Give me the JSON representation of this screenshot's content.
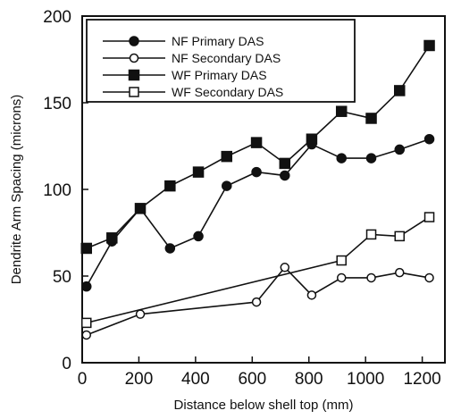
{
  "chart_data": {
    "type": "line",
    "title": "",
    "xlabel": "Distance below shell top (mm)",
    "ylabel": "Dendrite Arm Spacing (microns)",
    "xlim": [
      0,
      1280
    ],
    "ylim": [
      0,
      200
    ],
    "xticks": [
      0,
      200,
      400,
      600,
      800,
      1000,
      1200
    ],
    "yticks": [
      0,
      50,
      100,
      150,
      200
    ],
    "xtick_labels": [
      "0",
      "200",
      "400",
      "600",
      "800",
      "1000",
      "1200"
    ],
    "ytick_labels": [
      "0",
      "50",
      "100",
      "150",
      "200"
    ],
    "grid": false,
    "legend_position": "top-left",
    "series": [
      {
        "name": "NF Primary DAS",
        "marker": "filled-circle",
        "color": "#111111",
        "x": [
          15,
          105,
          205,
          310,
          410,
          510,
          615,
          715,
          810,
          915,
          1020,
          1120,
          1225
        ],
        "y": [
          44,
          70,
          89,
          66,
          73,
          102,
          110,
          108,
          126,
          118,
          118,
          123,
          129
        ]
      },
      {
        "name": "NF Secondary DAS",
        "marker": "open-circle",
        "color": "#111111",
        "x": [
          15,
          205,
          615,
          715,
          810,
          915,
          1020,
          1120,
          1225
        ],
        "y": [
          16,
          28,
          35,
          55,
          39,
          49,
          49,
          52,
          49
        ]
      },
      {
        "name": "WF Primary DAS",
        "marker": "filled-square",
        "color": "#111111",
        "x": [
          15,
          105,
          205,
          310,
          410,
          510,
          615,
          715,
          810,
          915,
          1020,
          1120,
          1225
        ],
        "y": [
          66,
          72,
          89,
          102,
          110,
          119,
          127,
          115,
          129,
          145,
          141,
          157,
          183
        ]
      },
      {
        "name": "WF Secondary DAS",
        "marker": "open-square",
        "color": "#111111",
        "x": [
          15,
          915,
          1020,
          1120,
          1225
        ],
        "y": [
          23,
          59,
          74,
          73,
          84
        ]
      }
    ]
  }
}
